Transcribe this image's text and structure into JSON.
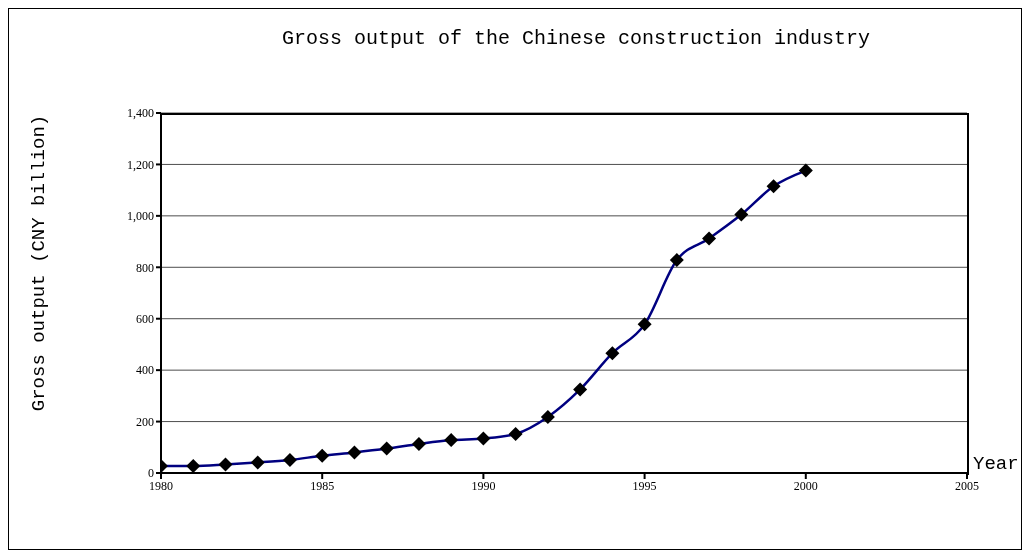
{
  "chart_data": {
    "type": "line",
    "title": "Gross output of the Chinese construction industry",
    "xlabel": "Year",
    "ylabel": "Gross output (CNY billion)",
    "x": [
      1980,
      1981,
      1982,
      1983,
      1984,
      1985,
      1986,
      1987,
      1988,
      1989,
      1990,
      1991,
      1992,
      1993,
      1994,
      1995,
      1996,
      1997,
      1998,
      1999,
      2000
    ],
    "series": [
      {
        "color": "#000080",
        "values": [
          27,
          27,
          33,
          41,
          51,
          67,
          80,
          95,
          113,
          128,
          134,
          152,
          218,
          325,
          466,
          578,
          828,
          912,
          1005,
          1115,
          1176
        ]
      }
    ],
    "xlim": [
      1980,
      2005
    ],
    "xticks": [
      1980,
      1985,
      1990,
      1995,
      2000,
      2005
    ],
    "ylim": [
      0,
      1400
    ],
    "yticks": [
      0,
      200,
      400,
      600,
      800,
      {
        "value": 1000,
        "label": "1,000"
      },
      {
        "value": 1200,
        "label": "1,200"
      },
      {
        "value": 1400,
        "label": "1,400"
      }
    ],
    "grid": "y",
    "marker": "diamond",
    "line_style": "solid"
  }
}
